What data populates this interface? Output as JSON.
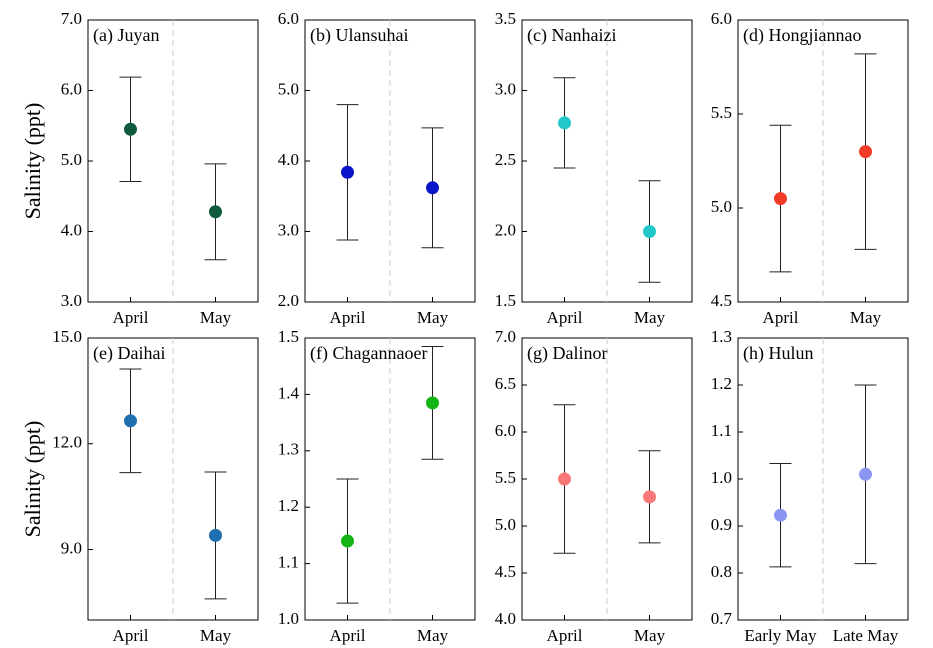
{
  "chart_data": [
    {
      "type": "errorbar",
      "title": "(a) Juyan",
      "ylabel": "Salinity (ppt)",
      "categories": [
        "April",
        "May"
      ],
      "values": [
        5.45,
        4.28
      ],
      "errors": [
        0.74,
        0.68
      ],
      "color": "#0d5a3c",
      "ylim": [
        3,
        7
      ],
      "yticks": [
        {
          "value": 3,
          "label": "3.0"
        },
        {
          "value": 4,
          "label": "4.0"
        },
        {
          "value": 5,
          "label": "5.0"
        },
        {
          "value": 6,
          "label": "6.0"
        },
        {
          "value": 7,
          "label": "7.0"
        }
      ]
    },
    {
      "type": "errorbar",
      "title": "(b) Ulansuhai",
      "categories": [
        "April",
        "May"
      ],
      "values": [
        3.84,
        3.62
      ],
      "errors": [
        0.96,
        0.85
      ],
      "color": "#0a14c8",
      "ylim": [
        2,
        6
      ],
      "yticks": [
        {
          "value": 2,
          "label": "2.0"
        },
        {
          "value": 3,
          "label": "3.0"
        },
        {
          "value": 4,
          "label": "4.0"
        },
        {
          "value": 5,
          "label": "5.0"
        },
        {
          "value": 6,
          "label": "6.0"
        }
      ]
    },
    {
      "type": "errorbar",
      "title": "(c) Nanhaizi",
      "categories": [
        "April",
        "May"
      ],
      "values": [
        2.77,
        2.0
      ],
      "errors": [
        0.32,
        0.36
      ],
      "color": "#22c8c8",
      "ylim": [
        1.5,
        3.5
      ],
      "yticks": [
        1.5,
        {
          "value": 2,
          "label": "2.0"
        },
        2.5,
        {
          "value": 3,
          "label": "3.0"
        },
        3.5
      ]
    },
    {
      "type": "errorbar",
      "title": "(d) Hongjiannao",
      "categories": [
        "April",
        "May"
      ],
      "values": [
        5.05,
        5.3
      ],
      "errors": [
        0.39,
        0.52
      ],
      "color": "#f03c28",
      "ylim": [
        4.5,
        6
      ],
      "yticks": [
        4.5,
        {
          "value": 5,
          "label": "5.0"
        },
        5.5,
        {
          "value": 6,
          "label": "6.0"
        }
      ]
    },
    {
      "type": "errorbar",
      "title": "(e) Daihai",
      "ylabel": "Salinity (ppt)",
      "categories": [
        "April",
        "May"
      ],
      "values": [
        12.65,
        9.4
      ],
      "errors": [
        1.47,
        1.8
      ],
      "color": "#1f6fb0",
      "ylim": [
        7,
        15
      ],
      "yticks": [
        {
          "value": 9,
          "label": "9.0"
        },
        {
          "value": 12,
          "label": "12.0"
        },
        {
          "value": 15,
          "label": "15.0"
        }
      ]
    },
    {
      "type": "errorbar",
      "title": "(f) Chagannaoer",
      "categories": [
        "April",
        "May"
      ],
      "values": [
        1.14,
        1.385
      ],
      "errors": [
        0.11,
        0.1
      ],
      "color": "#14b414",
      "ylim": [
        1,
        1.5
      ],
      "yticks": [
        {
          "value": 1,
          "label": "1.0"
        },
        1.1,
        1.2,
        1.3,
        1.4,
        1.5
      ]
    },
    {
      "type": "errorbar",
      "title": "(g) Dalinor",
      "categories": [
        "April",
        "May"
      ],
      "values": [
        5.5,
        5.31
      ],
      "errors": [
        0.79,
        0.49
      ],
      "color": "#f87878",
      "ylim": [
        4,
        7
      ],
      "yticks": [
        {
          "value": 4,
          "label": "4.0"
        },
        4.5,
        {
          "value": 5,
          "label": "5.0"
        },
        5.5,
        {
          "value": 6,
          "label": "6.0"
        },
        6.5,
        {
          "value": 7,
          "label": "7.0"
        }
      ]
    },
    {
      "type": "errorbar",
      "title": "(h) Hulun",
      "categories": [
        "Early May",
        "Late May"
      ],
      "values": [
        0.923,
        1.01
      ],
      "errors": [
        0.11,
        0.19
      ],
      "color": "#8c96f0",
      "ylim": [
        0.7,
        1.3
      ],
      "yticks": [
        0.7,
        0.8,
        0.9,
        {
          "value": 1,
          "label": "1.0"
        },
        1.1,
        1.2,
        1.3
      ]
    }
  ]
}
